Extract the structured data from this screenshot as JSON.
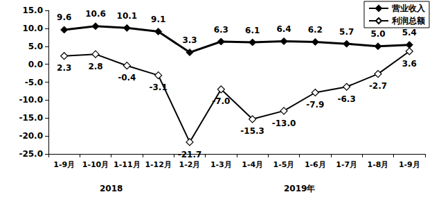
{
  "chart_data": {
    "type": "line",
    "categories": [
      "1-9月",
      "1-10月",
      "1-11月",
      "1-12月",
      "1-2月",
      "1-3月",
      "1-4月",
      "1-5月",
      "1-6月",
      "1-7月",
      "1-8月",
      "1-9月"
    ],
    "category_groups": [
      {
        "label": "2018",
        "size": 4
      },
      {
        "label": "2019年",
        "size": 8
      }
    ],
    "series": [
      {
        "name": "营业收入",
        "color": "#000000",
        "marker": "diamond",
        "values": [
          9.6,
          10.6,
          10.1,
          9.1,
          3.3,
          6.3,
          6.1,
          6.4,
          6.2,
          5.7,
          5.0,
          5.4
        ],
        "value_labels": [
          "9.6",
          "10.6",
          "10.1",
          "9.1",
          "3.3",
          "6.3",
          "6.1",
          "6.4",
          "6.2",
          "5.7",
          "5.0",
          "5.4"
        ]
      },
      {
        "name": "利润总额",
        "color": "#000000",
        "marker": "diamond-open",
        "values": [
          2.3,
          2.8,
          -0.4,
          -3.1,
          -21.7,
          -7.0,
          -15.3,
          -13.0,
          -7.9,
          -6.3,
          -2.7,
          3.6
        ],
        "value_labels": [
          "2.3",
          "2.8",
          "-0.4",
          "-3.1",
          "-21.7",
          "-7.0",
          "-15.3",
          "-13.0",
          "-7.9",
          "-6.3",
          "-2.7",
          "3.6"
        ]
      }
    ],
    "ylim": [
      -25,
      15
    ],
    "yticks": [
      {
        "value": -25,
        "label": "-25.0"
      },
      {
        "value": -20,
        "label": "-20.0"
      },
      {
        "value": -15,
        "label": "-15.0"
      },
      {
        "value": -10,
        "label": "-10.0"
      },
      {
        "value": -5,
        "label": "-5.0"
      },
      {
        "value": 0,
        "label": "0.0"
      },
      {
        "value": 5,
        "label": "5.0"
      },
      {
        "value": 10,
        "label": "10.0"
      },
      {
        "value": 15,
        "label": "15.0"
      }
    ],
    "grid": false,
    "legend": "upper right",
    "data_labels": true
  }
}
